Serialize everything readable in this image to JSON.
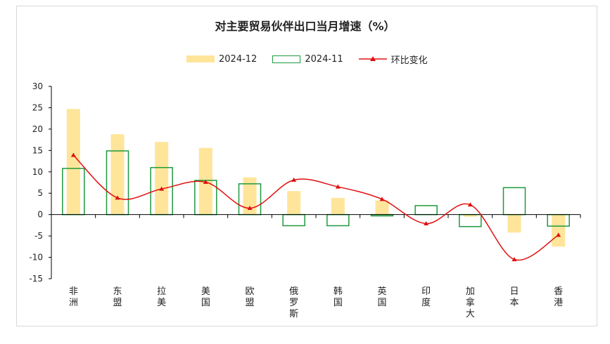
{
  "chart_data": {
    "type": "bar",
    "title": "对主要贸易伙伴出口当月增速（%）",
    "categories": [
      "非洲",
      "东盟",
      "拉美",
      "美国",
      "欧盟",
      "俄罗斯",
      "韩国",
      "英国",
      "印度",
      "加拿大",
      "日本",
      "香港"
    ],
    "series": [
      {
        "name": "2024-12",
        "kind": "bar",
        "style": "filled",
        "color": "#ffe59a",
        "values": [
          24.7,
          18.8,
          17.0,
          15.6,
          8.7,
          5.5,
          3.9,
          3.3,
          0.0,
          -0.5,
          -4.2,
          -7.5
        ]
      },
      {
        "name": "2024-11",
        "kind": "bar",
        "style": "outline",
        "color": "#1e9a3e",
        "values": [
          10.8,
          14.9,
          11.0,
          8.0,
          7.2,
          -2.6,
          -2.6,
          -0.3,
          2.1,
          -2.8,
          6.3,
          -2.7
        ]
      },
      {
        "name": "环比变化",
        "kind": "line",
        "color": "#e01010",
        "values": [
          13.9,
          3.9,
          6.0,
          7.6,
          1.5,
          8.1,
          6.5,
          3.6,
          -2.1,
          2.3,
          -10.5,
          -4.8
        ]
      }
    ],
    "ylim": [
      -15,
      30
    ],
    "yticks": [
      30,
      25,
      20,
      15,
      10,
      5,
      0,
      -5,
      -10,
      -15
    ],
    "legend_position": "top"
  }
}
